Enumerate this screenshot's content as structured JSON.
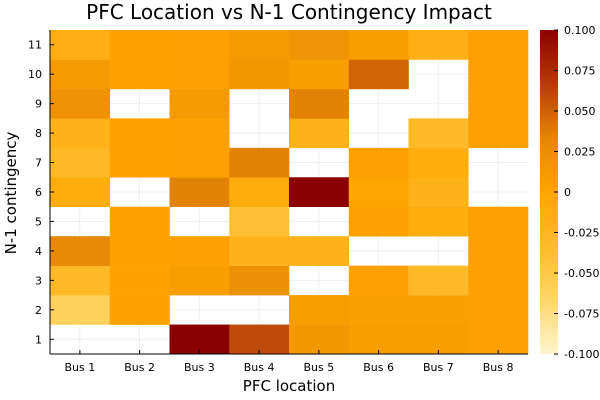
{
  "chart_data": {
    "type": "heatmap",
    "title": "PFC Location vs N-1 Contingency Impact",
    "xlabel": "PFC location",
    "ylabel": "N-1 contingency",
    "x_categories": [
      "Bus 1",
      "Bus 2",
      "Bus 3",
      "Bus 4",
      "Bus 5",
      "Bus 6",
      "Bus 7",
      "Bus 8"
    ],
    "y_categories": [
      "1",
      "2",
      "3",
      "4",
      "5",
      "6",
      "7",
      "8",
      "9",
      "10",
      "11"
    ],
    "values": [
      [
        null,
        null,
        0.1,
        0.06,
        0.015,
        0.008,
        0.008,
        0.004
      ],
      [
        -0.06,
        0.003,
        null,
        null,
        0.007,
        0.005,
        0.005,
        0.004
      ],
      [
        -0.03,
        0.003,
        0.008,
        0.022,
        null,
        0.004,
        -0.03,
        0.004
      ],
      [
        0.03,
        0.003,
        0.004,
        -0.02,
        -0.02,
        null,
        null,
        0.004
      ],
      [
        null,
        0.003,
        null,
        -0.04,
        null,
        0.004,
        -0.01,
        0.004
      ],
      [
        -0.01,
        null,
        0.035,
        -0.01,
        0.1,
        0.0,
        -0.02,
        null
      ],
      [
        -0.03,
        0.003,
        0.004,
        0.035,
        null,
        0.004,
        -0.01,
        null
      ],
      [
        -0.02,
        0.003,
        0.004,
        null,
        -0.02,
        null,
        -0.03,
        0.004
      ],
      [
        0.02,
        null,
        0.012,
        null,
        0.035,
        null,
        null,
        0.004
      ],
      [
        0.012,
        0.003,
        0.004,
        0.015,
        0.008,
        0.048,
        null,
        0.004
      ],
      [
        -0.015,
        0.003,
        0.004,
        0.012,
        0.018,
        0.008,
        -0.015,
        0.004
      ]
    ],
    "colorscale": {
      "name": "YlOrBr-like",
      "min": -0.1,
      "max": 0.1,
      "stops": [
        "#fff5d0",
        "#ffd66a",
        "#ffbb2a",
        "#ffa500",
        "#e48606",
        "#b53c08",
        "#8b0000"
      ],
      "ticks": [
        "0.100",
        "0.075",
        "0.050",
        "0.025",
        "0",
        "-0.025",
        "-0.050",
        "-0.075",
        "-0.100"
      ]
    },
    "grid": true,
    "missing_color": "#ffffff"
  }
}
